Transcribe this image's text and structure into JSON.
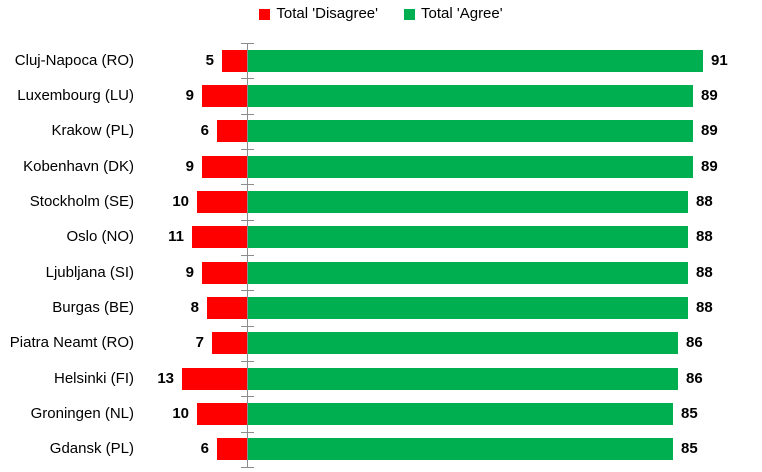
{
  "chart_data": {
    "type": "bar",
    "subtype": "diverging-horizontal",
    "title": "",
    "xlabel": "",
    "ylabel": "",
    "categories": [
      "Cluj-Napoca (RO)",
      "Luxembourg (LU)",
      "Krakow (PL)",
      "Kobenhavn (DK)",
      "Stockholm (SE)",
      "Oslo (NO)",
      "Ljubljana (SI)",
      "Burgas (BE)",
      "Piatra Neamt (RO)",
      "Helsinki (FI)",
      "Groningen (NL)",
      "Gdansk (PL)"
    ],
    "series": [
      {
        "name": "Total 'Disagree'",
        "side": "left",
        "color": "#FF0000",
        "values": [
          5,
          9,
          6,
          9,
          10,
          11,
          9,
          8,
          7,
          13,
          10,
          6
        ]
      },
      {
        "name": "Total 'Agree'",
        "side": "right",
        "color": "#00B050",
        "values": [
          91,
          89,
          89,
          89,
          88,
          88,
          88,
          88,
          86,
          86,
          85,
          85
        ]
      }
    ],
    "value_labels": "outside-end-bold",
    "axis": {
      "numeric_labels_visible": false,
      "tick_marks": "category-boundaries",
      "color": "#8C8C8C"
    },
    "xlim": [
      0,
      100
    ],
    "grid": false,
    "legend_position": "top-center",
    "background": "#FFFFFF"
  }
}
